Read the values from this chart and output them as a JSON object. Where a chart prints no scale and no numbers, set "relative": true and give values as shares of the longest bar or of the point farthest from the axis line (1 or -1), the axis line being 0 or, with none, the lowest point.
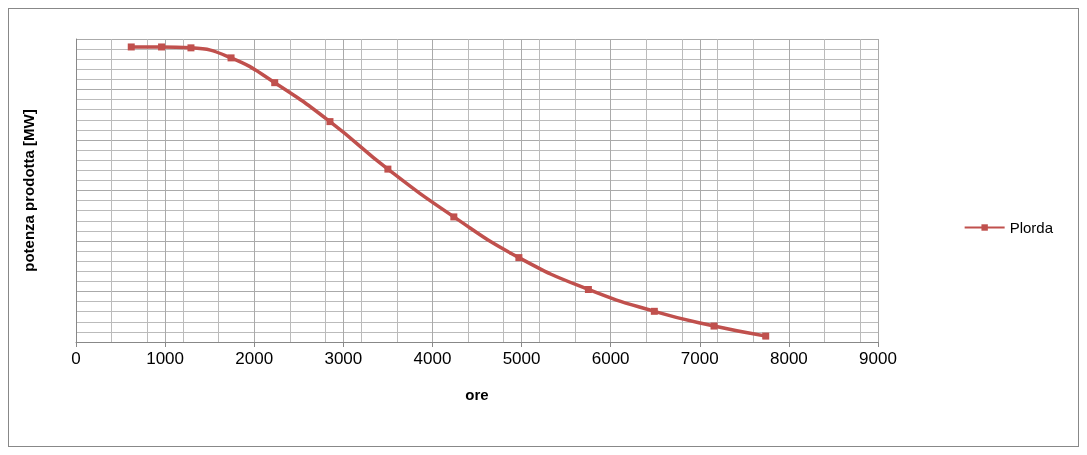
{
  "chart_data": {
    "type": "line",
    "xlabel": "ore",
    "ylabel": "potenza prodotta [MW]",
    "relative": true,
    "xlim": [
      0,
      9000
    ],
    "xticks": [
      0,
      1000,
      2000,
      3000,
      4000,
      5000,
      6000,
      7000,
      8000,
      9000
    ],
    "series": [
      {
        "name": "Plorda",
        "color": "#c0504d",
        "x": [
          620,
          960,
          1290,
          1740,
          2230,
          2850,
          3500,
          4240,
          4970,
          5750,
          6490,
          7160,
          7740
        ],
        "values": [
          1,
          1,
          0.997,
          0.963,
          0.879,
          0.747,
          0.586,
          0.424,
          0.286,
          0.178,
          0.104,
          0.054,
          0.02
        ]
      }
    ],
    "grid": true,
    "legend": "right",
    "marker": "square",
    "line_style": "solid",
    "tick_labels": "x"
  }
}
